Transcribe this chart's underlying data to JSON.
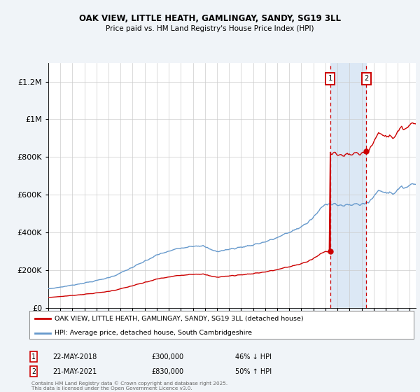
{
  "title": "OAK VIEW, LITTLE HEATH, GAMLINGAY, SANDY, SG19 3LL",
  "subtitle": "Price paid vs. HM Land Registry's House Price Index (HPI)",
  "legend_line1": "OAK VIEW, LITTLE HEATH, GAMLINGAY, SANDY, SG19 3LL (detached house)",
  "legend_line2": "HPI: Average price, detached house, South Cambridgeshire",
  "annotation1_date": "22-MAY-2018",
  "annotation1_price": "£300,000",
  "annotation1_hpi": "46% ↓ HPI",
  "annotation2_date": "21-MAY-2021",
  "annotation2_price": "£830,000",
  "annotation2_hpi": "50% ↑ HPI",
  "sale1_year": 2018.39,
  "sale1_price": 300000,
  "sale2_year": 2021.39,
  "sale2_price": 830000,
  "hpi_color": "#6699cc",
  "price_color": "#cc0000",
  "bg_color": "#f0f4f8",
  "plot_bg": "#ffffff",
  "highlight_color": "#dce8f5",
  "grid_color": "#cccccc",
  "ylim_max": 1300000,
  "xlim_start": 1995,
  "xlim_end": 2025.5,
  "yticks": [
    0,
    200000,
    400000,
    600000,
    800000,
    1000000,
    1200000
  ],
  "ytick_labels": [
    "£0",
    "£200K",
    "£400K",
    "£600K",
    "£800K",
    "£1M",
    "£1.2M"
  ],
  "footer": "Contains HM Land Registry data © Crown copyright and database right 2025.\nThis data is licensed under the Open Government Licence v3.0."
}
